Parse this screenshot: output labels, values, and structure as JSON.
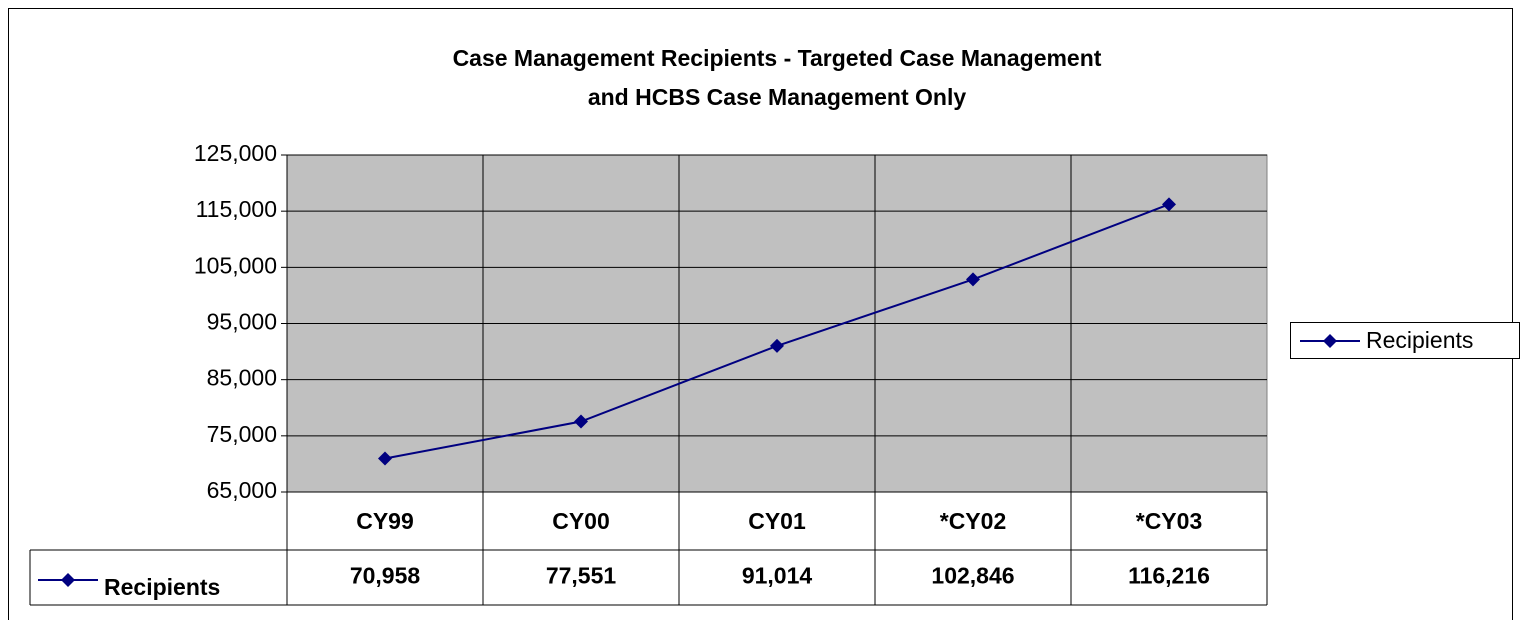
{
  "chart_data": {
    "type": "line",
    "title": [
      "Case Management Recipients - Targeted Case Management",
      "and HCBS Case Management Only"
    ],
    "categories": [
      "CY99",
      "CY00",
      "CY01",
      "*CY02",
      "*CY03"
    ],
    "series": [
      {
        "name": "Recipients",
        "color": "#000080",
        "values": [
          70958,
          77551,
          91014,
          102846,
          116216
        ],
        "value_labels": [
          "70,958",
          "77,551",
          "91,014",
          "102,846",
          "116,216"
        ]
      }
    ],
    "ylim": [
      65000,
      125000
    ],
    "yticks": [
      {
        "value": 65000,
        "label": "65,000"
      },
      {
        "value": 75000,
        "label": "75,000"
      },
      {
        "value": 85000,
        "label": "85,000"
      },
      {
        "value": 95000,
        "label": "95,000"
      },
      {
        "value": 105000,
        "label": "105,000"
      },
      {
        "value": 115000,
        "label": "115,000"
      },
      {
        "value": 125000,
        "label": "125,000"
      }
    ],
    "grid": true,
    "legend": "right",
    "data_table": true
  }
}
